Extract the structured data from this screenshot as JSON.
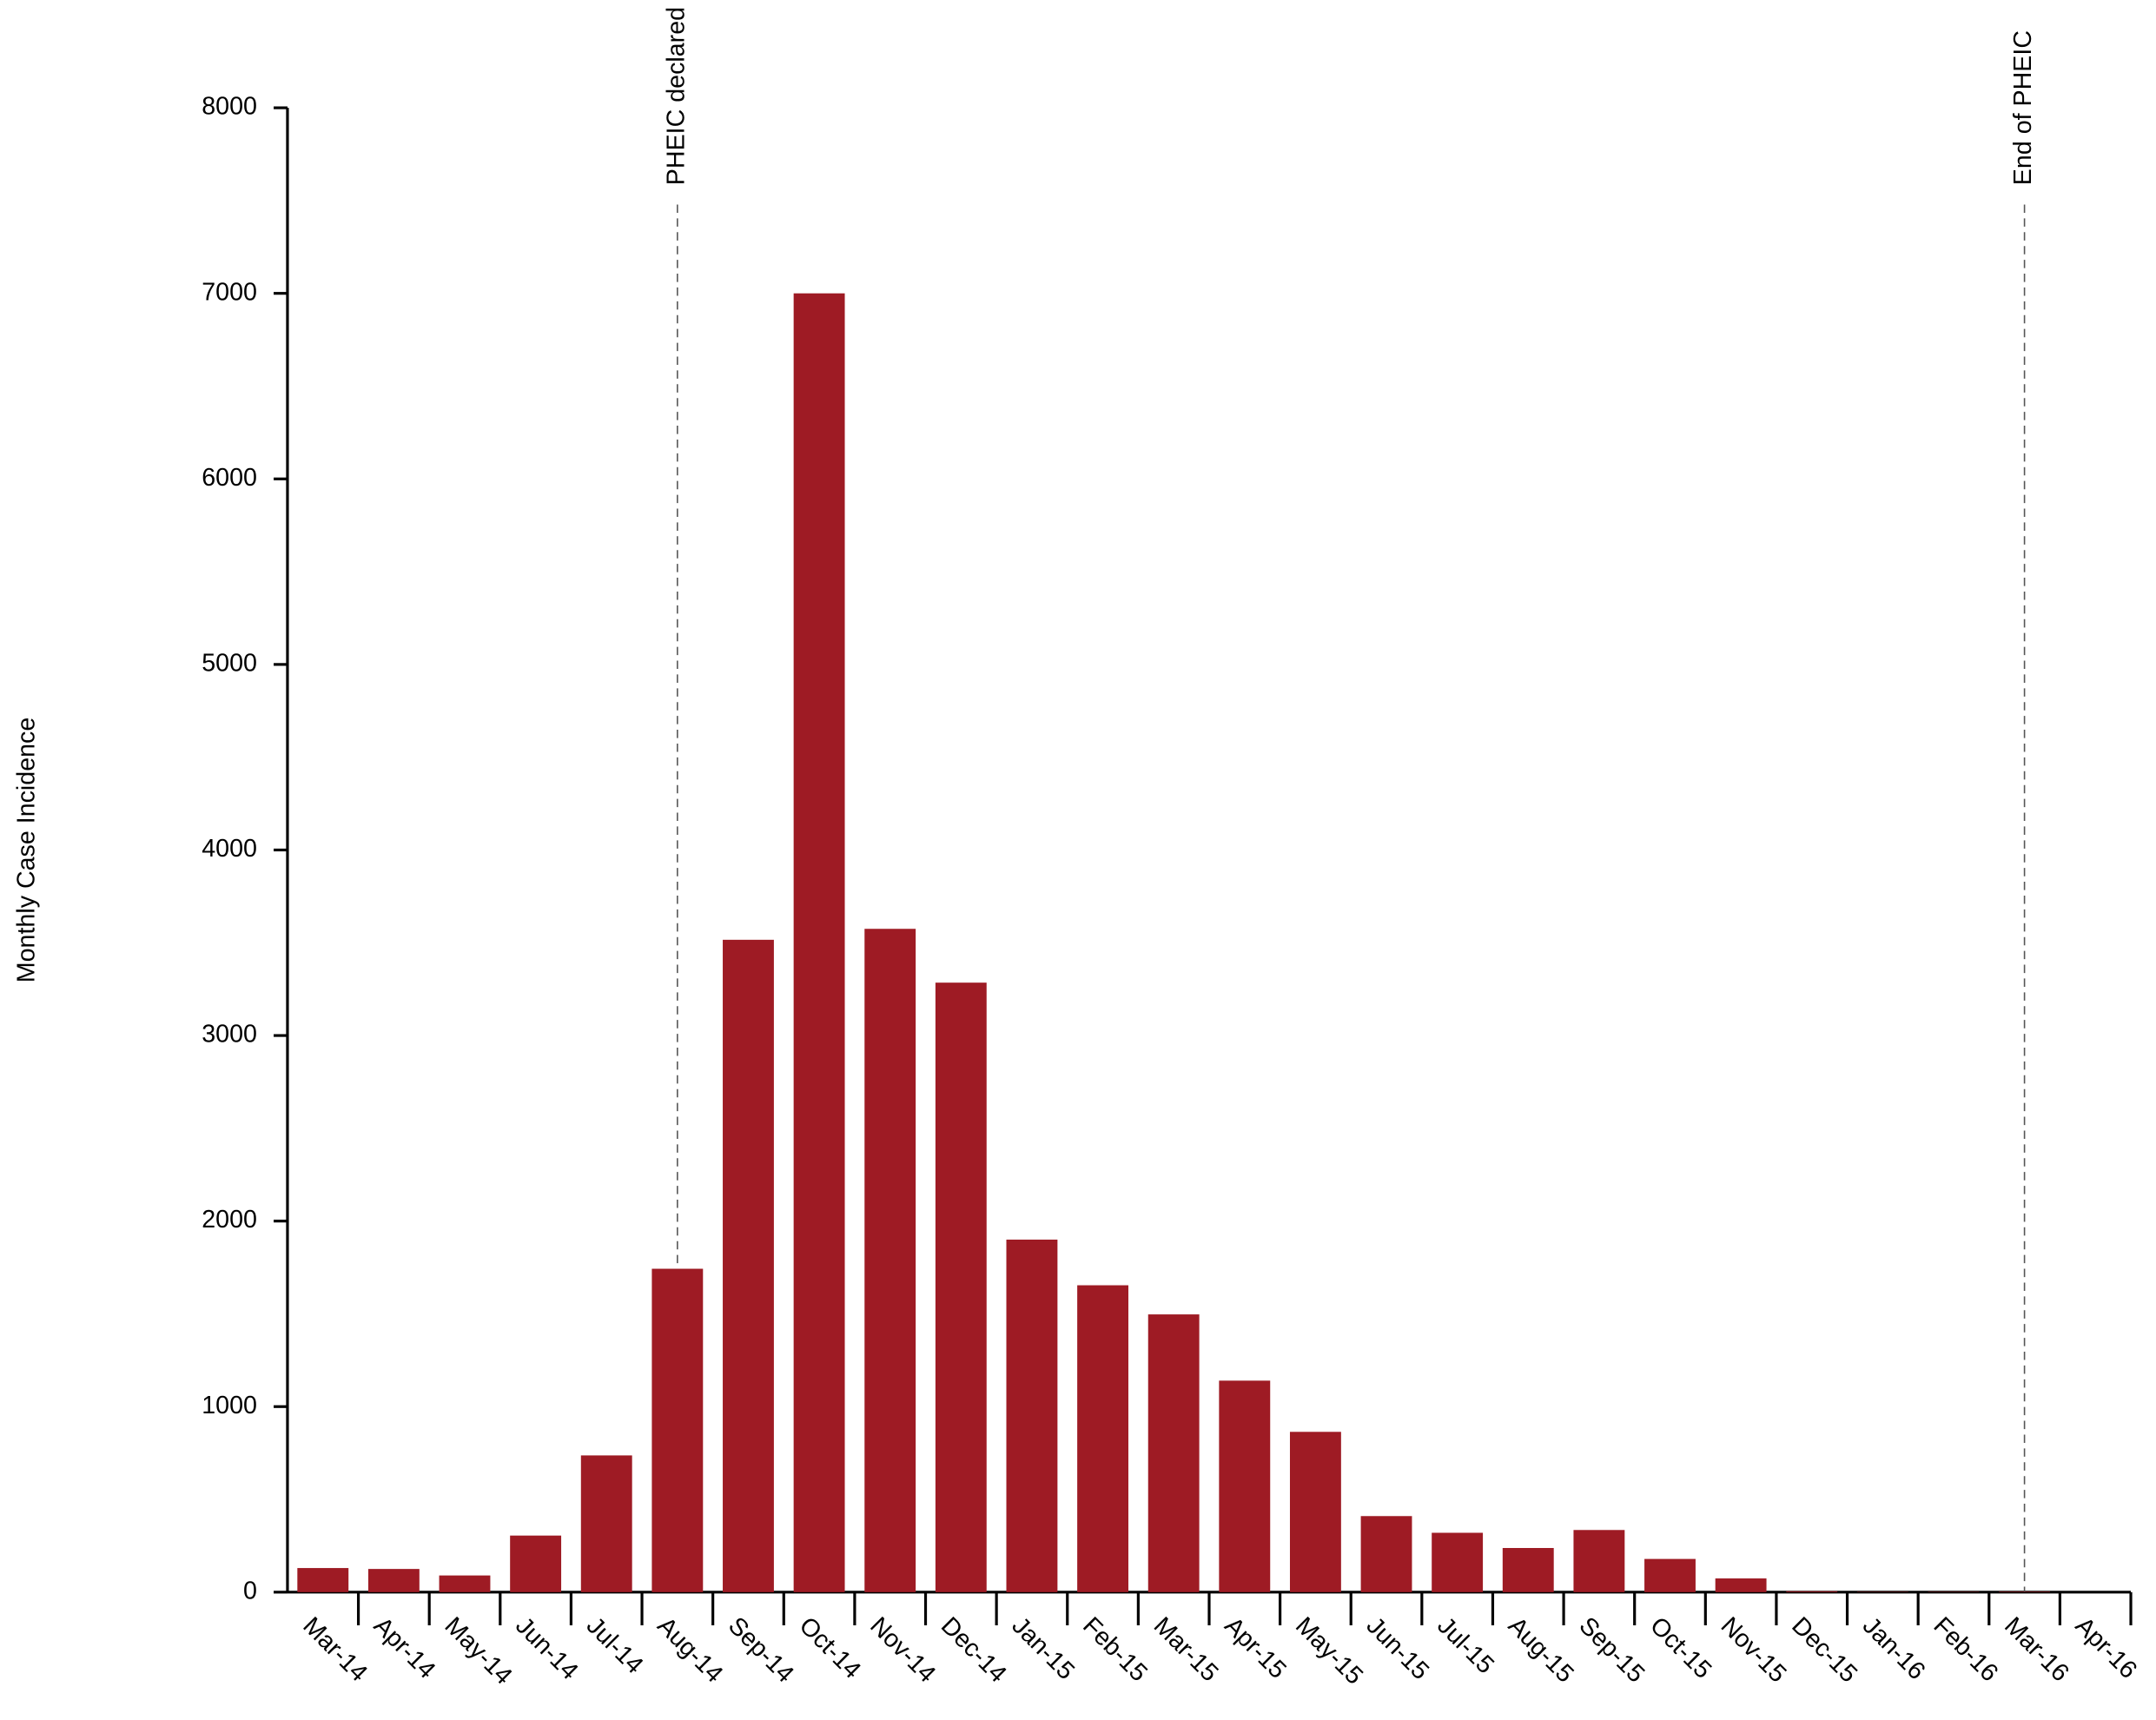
{
  "chart_data": {
    "type": "bar",
    "y_label": "Monthly Case Incidence",
    "categories": [
      "Mar-14",
      "Apr-14",
      "May-14",
      "Jun-14",
      "Jul-14",
      "Aug-14",
      "Sep-14",
      "Oct-14",
      "Nov-14",
      "Dec-14",
      "Jan-15",
      "Feb-15",
      "Mar-15",
      "Apr-15",
      "May-15",
      "Jun-15",
      "Jul-15",
      "Aug-15",
      "Sep-15",
      "Oct-15",
      "Nov-15",
      "Dec-15",
      "Jan-16",
      "Feb-16",
      "Mar-16",
      "Apr-16"
    ],
    "values": [
      130,
      125,
      90,
      305,
      737,
      1743,
      3516,
      7000,
      3575,
      3285,
      1900,
      1654,
      1497,
      1140,
      864,
      410,
      320,
      238,
      335,
      179,
      74,
      5,
      2,
      2,
      3,
      0
    ],
    "color": "#9e1b24",
    "ylim": [
      0,
      8000
    ],
    "yticks": [
      0,
      1000,
      2000,
      3000,
      4000,
      5000,
      6000,
      7000,
      8000
    ],
    "annotations": [
      {
        "text": "PHEIC declared",
        "at": "Aug-14"
      },
      {
        "text": "End of PHEIC",
        "at": "Mar-16"
      }
    ]
  }
}
